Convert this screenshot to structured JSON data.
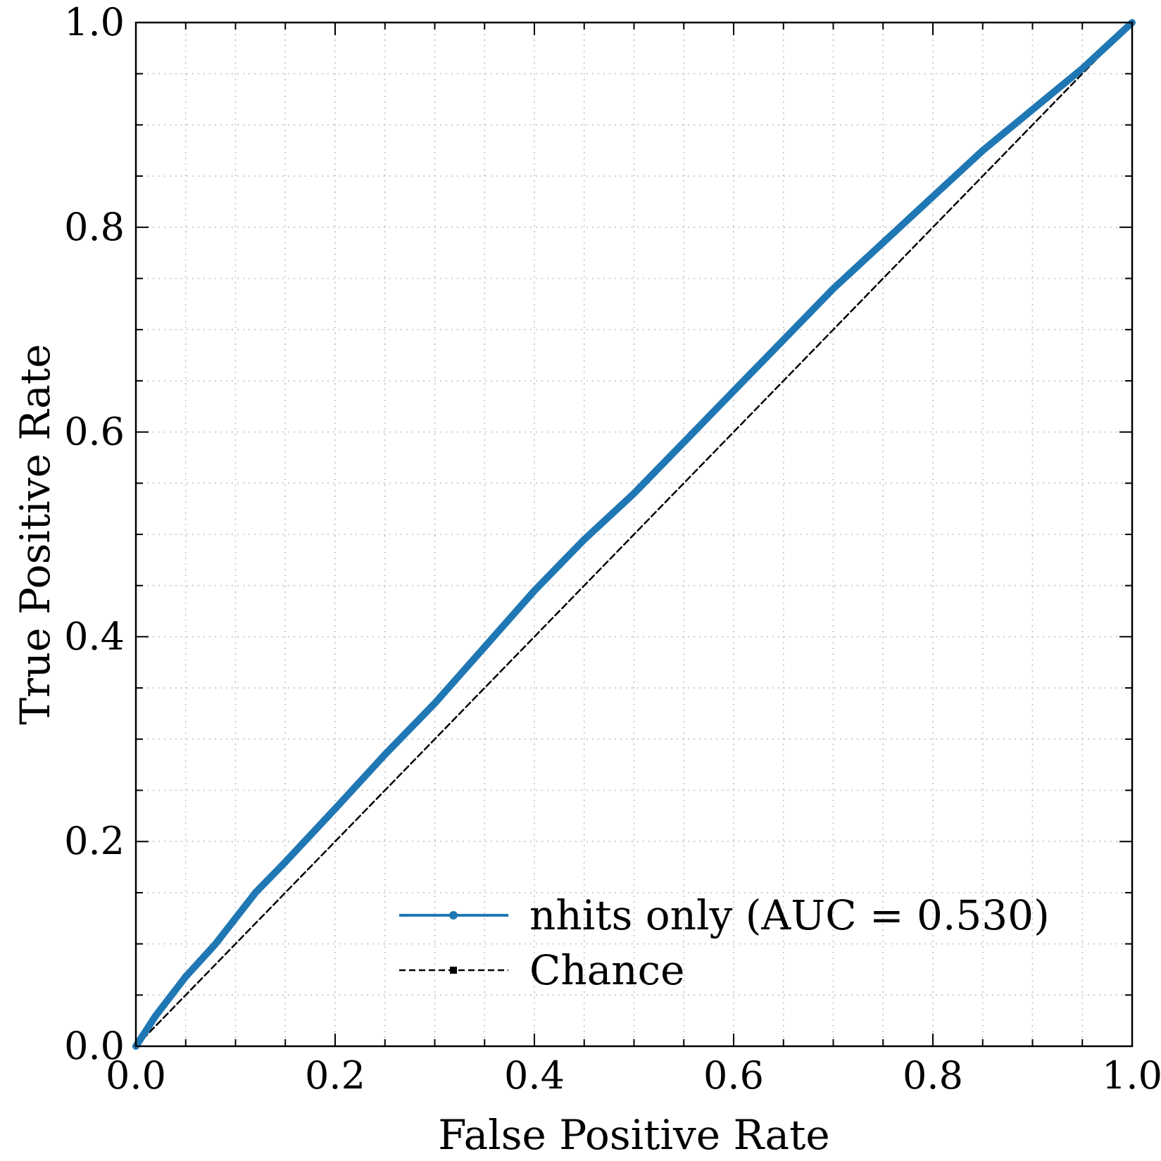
{
  "chart_data": {
    "type": "line",
    "xlabel": "False Positive Rate",
    "ylabel": "True Positive Rate",
    "xlim": [
      0.0,
      1.0
    ],
    "ylim": [
      0.0,
      1.0
    ],
    "x_ticks": [
      "0.0",
      "0.2",
      "0.4",
      "0.6",
      "0.8",
      "1.0"
    ],
    "y_ticks": [
      "0.0",
      "0.2",
      "0.4",
      "0.6",
      "0.8",
      "1.0"
    ],
    "grid": true,
    "legend_position": "lower-right",
    "series": [
      {
        "name": "nhits only (AUC = 0.530)",
        "color": "#1f77b4",
        "style": "solid",
        "x": [
          0.0,
          0.02,
          0.05,
          0.08,
          0.1,
          0.12,
          0.15,
          0.2,
          0.25,
          0.3,
          0.35,
          0.4,
          0.45,
          0.5,
          0.55,
          0.6,
          0.65,
          0.7,
          0.75,
          0.8,
          0.85,
          0.9,
          0.95,
          1.0
        ],
        "y": [
          0.0,
          0.03,
          0.068,
          0.1,
          0.125,
          0.15,
          0.18,
          0.232,
          0.285,
          0.335,
          0.39,
          0.445,
          0.495,
          0.54,
          0.59,
          0.64,
          0.69,
          0.74,
          0.785,
          0.83,
          0.875,
          0.915,
          0.955,
          1.0
        ]
      },
      {
        "name": "Chance",
        "color": "#000000",
        "style": "dashed",
        "x": [
          0.0,
          1.0
        ],
        "y": [
          0.0,
          1.0
        ]
      }
    ]
  }
}
